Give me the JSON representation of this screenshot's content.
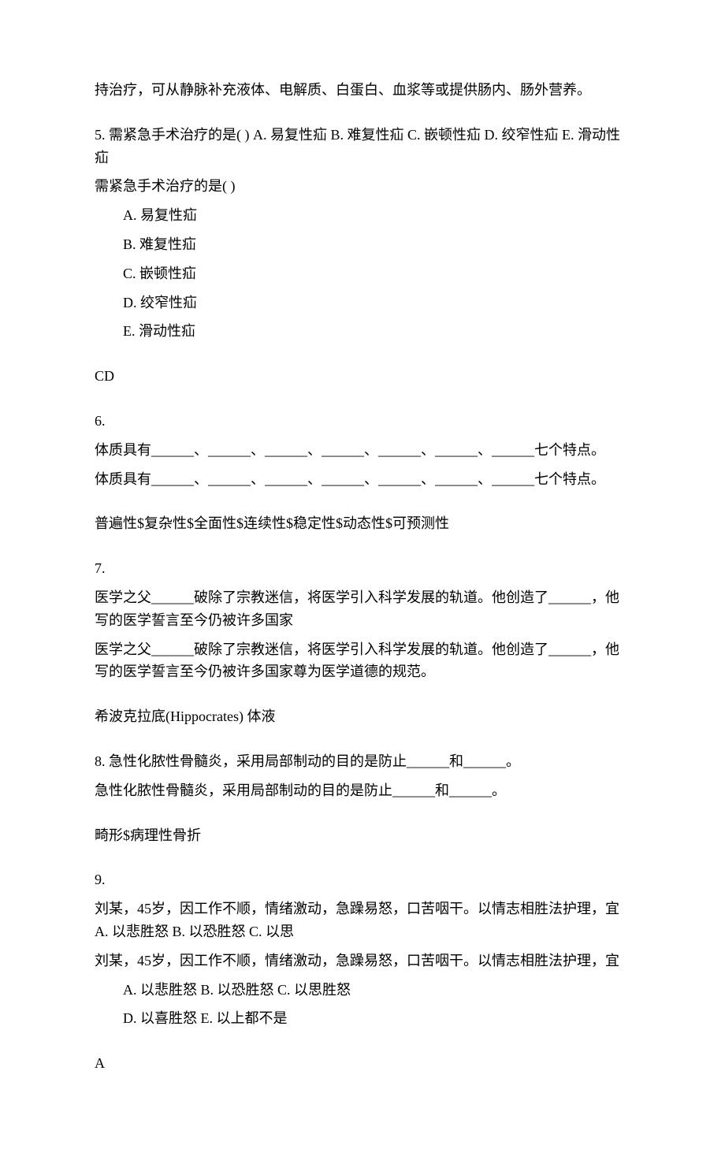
{
  "intro": "持治疗，可从静脉补充液体、电解质、白蛋白、血浆等或提供肠内、肠外营养。",
  "q5": {
    "stem_line1": "5. 需紧急手术治疗的是(  )    A. 易复性疝    B. 难复性疝    C. 嵌顿性疝    D. 绞窄性疝    E. 滑动性疝",
    "stem_line2": "需紧急手术治疗的是(  )",
    "options": {
      "a": "A. 易复性疝",
      "b": "B. 难复性疝",
      "c": "C. 嵌顿性疝",
      "d": "D. 绞窄性疝",
      "e": "E. 滑动性疝"
    },
    "answer": "CD"
  },
  "q6": {
    "num": "6.",
    "line1": "体质具有______、______、______、______、______、______、______七个特点。",
    "line2": "体质具有______、______、______、______、______、______、______七个特点。",
    "answer": "普遍性$复杂性$全面性$连续性$稳定性$动态性$可预测性"
  },
  "q7": {
    "num": "7.",
    "line1": "医学之父______破除了宗教迷信，将医学引入科学发展的轨道。他创造了______，他写的医学誓言至今仍被许多国家",
    "line2": "医学之父______破除了宗教迷信，将医学引入科学发展的轨道。他创造了______，他写的医学誓言至今仍被许多国家尊为医学道德的规范。",
    "answer": "希波克拉底(Hippocrates)   体液"
  },
  "q8": {
    "line1": "8. 急性化脓性骨髓炎，采用局部制动的目的是防止______和______。",
    "line2": "急性化脓性骨髓炎，采用局部制动的目的是防止______和______。",
    "answer": "畸形$病理性骨折"
  },
  "q9": {
    "num": "9.",
    "line1": "刘某，45岁，因工作不顺，情绪激动，急躁易怒，口苦咽干。以情志相胜法护理，宜   A. 以悲胜怒   B. 以恐胜怒   C. 以思",
    "line2": "刘某，45岁，因工作不顺，情绪激动，急躁易怒，口苦咽干。以情志相胜法护理，宜",
    "opt_abc": "A. 以悲胜怒   B. 以恐胜怒   C. 以思胜怒",
    "opt_de": "D. 以喜胜怒   E. 以上都不是",
    "answer": "A"
  }
}
